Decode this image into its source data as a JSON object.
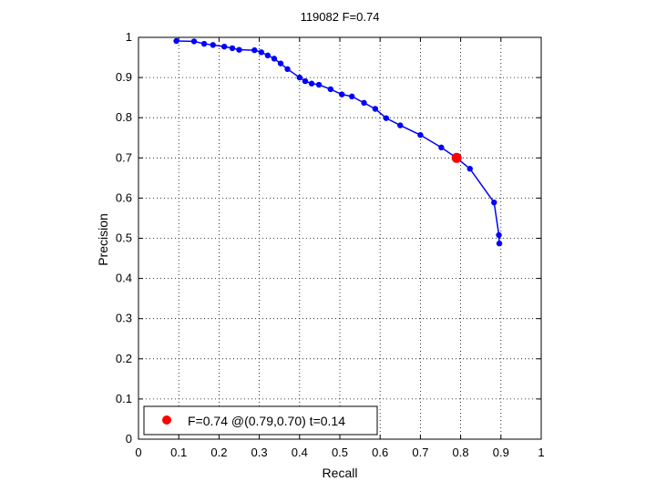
{
  "chart_data": {
    "type": "line",
    "title": "119082 F=0.74",
    "xlabel": "Recall",
    "ylabel": "Precision",
    "xlim": [
      0,
      1
    ],
    "ylim": [
      0,
      1
    ],
    "xticks": [
      "0",
      "0.1",
      "0.2",
      "0.3",
      "0.4",
      "0.5",
      "0.6",
      "0.7",
      "0.8",
      "0.9",
      "1"
    ],
    "yticks": [
      "0",
      "0.1",
      "0.2",
      "0.3",
      "0.4",
      "0.5",
      "0.6",
      "0.7",
      "0.8",
      "0.9",
      "1"
    ],
    "grid": true,
    "legend": "bottom-left",
    "series": [
      {
        "color": "#0000ff",
        "x": [
          0.094,
          0.138,
          0.163,
          0.185,
          0.213,
          0.233,
          0.25,
          0.288,
          0.305,
          0.321,
          0.337,
          0.353,
          0.37,
          0.4,
          0.414,
          0.43,
          0.448,
          0.477,
          0.505,
          0.53,
          0.56,
          0.588,
          0.615,
          0.65,
          0.7,
          0.752,
          0.79,
          0.823,
          0.883,
          0.895,
          0.896
        ],
        "y": [
          0.991,
          0.99,
          0.984,
          0.981,
          0.977,
          0.973,
          0.969,
          0.968,
          0.963,
          0.955,
          0.947,
          0.935,
          0.921,
          0.9,
          0.891,
          0.885,
          0.882,
          0.871,
          0.858,
          0.853,
          0.837,
          0.822,
          0.799,
          0.781,
          0.757,
          0.726,
          0.7,
          0.673,
          0.589,
          0.508,
          0.487
        ]
      }
    ],
    "highlight": {
      "x": 0.79,
      "y": 0.7,
      "color": "#ff0000",
      "label": "F=0.74 @(0.79,0.70) t=0.14"
    }
  }
}
